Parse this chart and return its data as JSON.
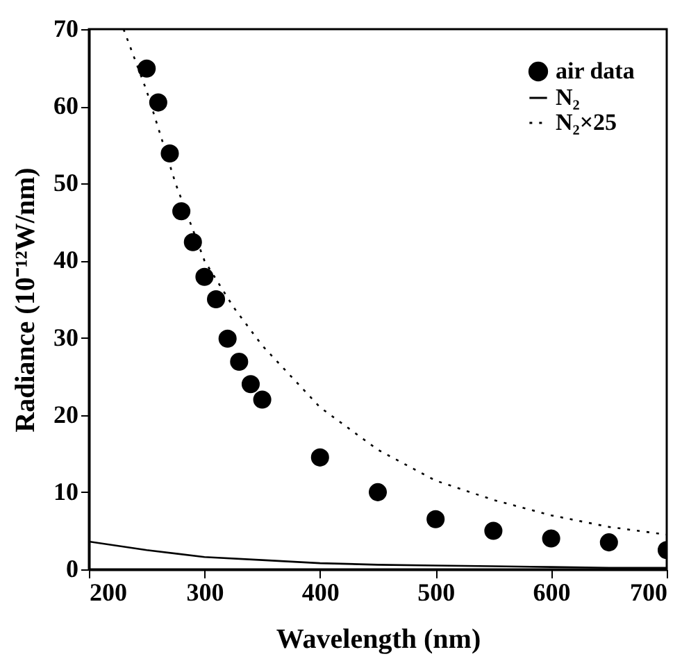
{
  "chart_data": {
    "type": "scatter",
    "xlabel": "Wavelength (nm)",
    "ylabel": "Radiance (10⁻¹²W/nm)",
    "xlim": [
      200,
      700
    ],
    "xticks": [
      200,
      300,
      400,
      500,
      600,
      700
    ],
    "ylim": [
      0,
      70
    ],
    "yticks": [
      0,
      10,
      20,
      30,
      40,
      50,
      60,
      70
    ],
    "legend": "top right",
    "series": [
      {
        "name": "air data",
        "type": "scatter",
        "marker": "circle",
        "color": "#000000",
        "x": [
          250,
          260,
          270,
          280,
          290,
          300,
          310,
          320,
          330,
          340,
          350,
          400,
          450,
          500,
          550,
          600,
          650,
          700
        ],
        "values": [
          64.9,
          60.5,
          53.9,
          46.4,
          42.4,
          37.9,
          35.0,
          29.9,
          26.9,
          24.0,
          22.0,
          14.5,
          10.0,
          6.5,
          5.0,
          4.0,
          3.5,
          2.5
        ]
      },
      {
        "name": "N₂",
        "type": "line",
        "line_style": "solid",
        "color": "#000000",
        "x": [
          200,
          250,
          300,
          350,
          400,
          450,
          500,
          550,
          600,
          650,
          700
        ],
        "values": [
          3.6,
          2.5,
          1.6,
          1.2,
          0.8,
          0.6,
          0.5,
          0.4,
          0.3,
          0.2,
          0.2
        ]
      },
      {
        "name": "N₂×25",
        "type": "line",
        "line_style": "dotted",
        "color": "#000000",
        "x": [
          230,
          250,
          275,
          300,
          325,
          350,
          400,
          450,
          500,
          550,
          600,
          650,
          700
        ],
        "values": [
          70,
          62,
          50,
          40,
          34,
          29,
          21,
          15.5,
          11.5,
          9,
          7,
          5.5,
          4.5
        ]
      }
    ]
  }
}
